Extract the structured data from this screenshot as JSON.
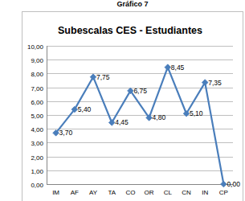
{
  "chart_data": {
    "type": "line",
    "title": "Subescalas CES - Estudiantes",
    "annotations": [
      "Gráfico 7"
    ],
    "categories": [
      "IM",
      "AF",
      "AY",
      "TA",
      "CO",
      "OR",
      "CL",
      "CN",
      "IN",
      "CP"
    ],
    "values": [
      3.7,
      5.4,
      7.75,
      4.45,
      6.75,
      4.8,
      8.45,
      5.1,
      7.35,
      0.0
    ],
    "value_labels": [
      "3,70",
      "5,40",
      "7,75",
      "4,45",
      "6,75",
      "4,80",
      "8,45",
      "5,10",
      "7,35",
      "0,00"
    ],
    "color": "#4a7ebb",
    "marker": "diamond",
    "data_labels": true,
    "grid": true,
    "ylim": [
      0,
      10
    ],
    "yticks": [
      {
        "value": 0,
        "label": "0,00"
      },
      {
        "value": 1,
        "label": "1,00"
      },
      {
        "value": 2,
        "label": "2,00"
      },
      {
        "value": 3,
        "label": "3,00"
      },
      {
        "value": 4,
        "label": "4,00"
      },
      {
        "value": 5,
        "label": "5,00"
      },
      {
        "value": 6,
        "label": "6,00"
      },
      {
        "value": 7,
        "label": "7,00"
      },
      {
        "value": 8,
        "label": "8,00"
      },
      {
        "value": 9,
        "label": "9,00"
      },
      {
        "value": 10,
        "label": "10,00"
      }
    ]
  }
}
